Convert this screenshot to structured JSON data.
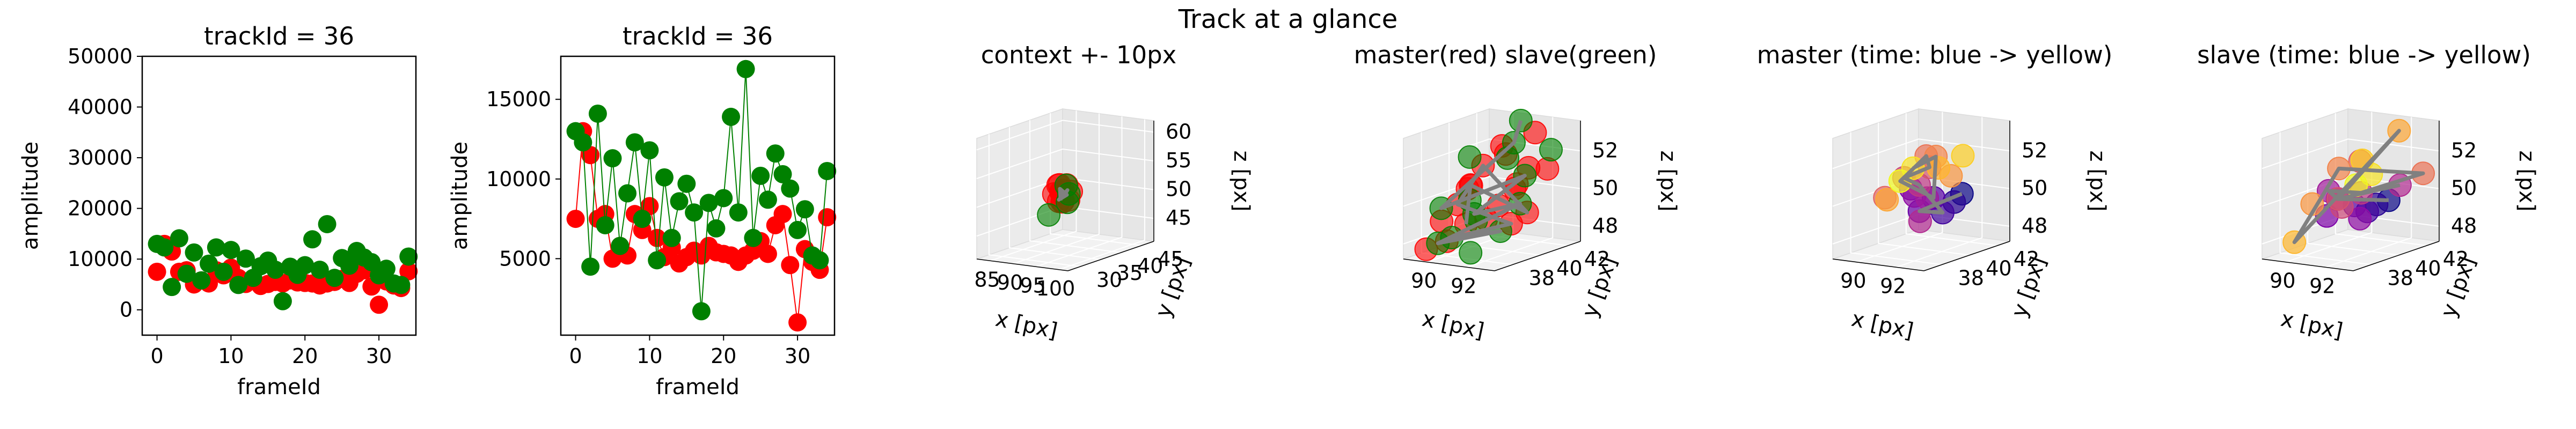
{
  "figure": {
    "suptitle": "Track at a glance"
  },
  "chart_data": [
    {
      "type": "scatter",
      "title": "trackId = 36",
      "xlabel": "frameId",
      "ylabel": "amplitude",
      "xlim": [
        -2,
        35
      ],
      "ylim": [
        -5000,
        50000
      ],
      "xticks": [
        0,
        10,
        20,
        30
      ],
      "yticks": [
        0,
        10000,
        20000,
        30000,
        40000,
        50000
      ],
      "series": [
        {
          "color": "#ff0000",
          "lines": false,
          "x": [
            0,
            1,
            2,
            3,
            4,
            5,
            6,
            7,
            8,
            9,
            10,
            11,
            12,
            13,
            14,
            15,
            16,
            17,
            18,
            19,
            20,
            21,
            22,
            23,
            24,
            25,
            26,
            27,
            28,
            29,
            30,
            31,
            32,
            33,
            34
          ],
          "y": [
            7500,
            13000,
            11500,
            7500,
            7800,
            5000,
            5800,
            5200,
            7800,
            6800,
            8300,
            6300,
            5100,
            5700,
            4700,
            5100,
            5500,
            5200,
            5800,
            5400,
            5300,
            5200,
            4800,
            5200,
            5500,
            6100,
            5300,
            7100,
            7800,
            4600,
            1000,
            5600,
            4800,
            4300,
            7600
          ]
        },
        {
          "color": "#008000",
          "lines": false,
          "x": [
            0,
            1,
            2,
            3,
            4,
            5,
            6,
            7,
            8,
            9,
            10,
            11,
            12,
            13,
            14,
            15,
            16,
            17,
            18,
            19,
            20,
            21,
            22,
            23,
            24,
            25,
            26,
            27,
            28,
            29,
            30,
            31,
            32,
            33,
            34
          ],
          "y": [
            13000,
            12300,
            4500,
            14100,
            7100,
            11300,
            5800,
            9100,
            12300,
            7500,
            11800,
            4900,
            10100,
            6300,
            8600,
            9700,
            7900,
            1700,
            8500,
            6900,
            8800,
            13900,
            7900,
            16900,
            6300,
            10200,
            8700,
            11600,
            10300,
            9400,
            6800,
            8100,
            5200,
            4900,
            10500
          ]
        }
      ]
    },
    {
      "type": "line",
      "title": "trackId = 36",
      "xlabel": "frameId",
      "ylabel": "amplitude",
      "xlim": [
        -2,
        35
      ],
      "ylim": [
        200,
        17700
      ],
      "xticks": [
        0,
        10,
        20,
        30
      ],
      "yticks": [
        5000,
        10000,
        15000
      ],
      "series": [
        {
          "color": "#ff0000",
          "lines": true,
          "x": [
            0,
            1,
            2,
            3,
            4,
            5,
            6,
            7,
            8,
            9,
            10,
            11,
            12,
            13,
            14,
            15,
            16,
            17,
            18,
            19,
            20,
            21,
            22,
            23,
            24,
            25,
            26,
            27,
            28,
            29,
            30,
            31,
            32,
            33,
            34
          ],
          "y": [
            7500,
            13000,
            11500,
            7500,
            7800,
            5000,
            5800,
            5200,
            7800,
            6800,
            8300,
            6300,
            5100,
            5700,
            4700,
            5100,
            5500,
            5200,
            5800,
            5400,
            5300,
            5200,
            4800,
            5200,
            5500,
            6100,
            5300,
            7100,
            7800,
            4600,
            1000,
            5600,
            4800,
            4300,
            7600
          ]
        },
        {
          "color": "#008000",
          "lines": true,
          "x": [
            0,
            1,
            2,
            3,
            4,
            5,
            6,
            7,
            8,
            9,
            10,
            11,
            12,
            13,
            14,
            15,
            16,
            17,
            18,
            19,
            20,
            21,
            22,
            23,
            24,
            25,
            26,
            27,
            28,
            29,
            30,
            31,
            32,
            33,
            34
          ],
          "y": [
            13000,
            12300,
            4500,
            14100,
            7100,
            11300,
            5800,
            9100,
            12300,
            7500,
            11800,
            4900,
            10100,
            6300,
            8600,
            9700,
            7900,
            1700,
            8500,
            6900,
            8800,
            13900,
            7900,
            16900,
            6300,
            10200,
            8700,
            11600,
            10300,
            9400,
            6800,
            8100,
            5200,
            4900,
            10500
          ]
        }
      ]
    },
    {
      "type": "scatter3d",
      "title": "context +- 10px",
      "xlabel": "x [px]",
      "ylabel": "y [px]",
      "zlabel": "z [px]",
      "xlim": [
        82,
        102
      ],
      "ylim": [
        27,
        48
      ],
      "zlim": [
        41,
        62
      ],
      "xticks": [
        85,
        90,
        95,
        100
      ],
      "yticks": [
        30,
        35,
        40,
        45
      ],
      "zticks": [
        45,
        50,
        55,
        60
      ],
      "series": [
        {
          "color": "#ff0000",
          "size": 20,
          "x": [
            89.5,
            90.5,
            91.5,
            90.1,
            91.9,
            89.3,
            90.8,
            91.2,
            89.9,
            90.6,
            91.6,
            90.3
          ],
          "y": [
            37.5,
            38.6,
            37.0,
            38.2,
            38.4,
            39.6,
            39.2,
            36.8,
            39.1,
            37.3,
            39.4,
            38.8
          ],
          "z": [
            50.5,
            49.1,
            51.2,
            52.0,
            49.5,
            50.3,
            51.8,
            49.6,
            48.8,
            52.2,
            50.7,
            50.9
          ]
        },
        {
          "color": "#008000",
          "size": 20,
          "x": [
            89.0,
            91.0,
            92.2,
            90.4
          ],
          "y": [
            36.8,
            39.5,
            37.5,
            39.8
          ],
          "z": [
            47.0,
            50.2,
            52.3,
            48.6
          ]
        }
      ],
      "path": {
        "color": "#808080",
        "x": [
          90.6,
          90.1,
          91.1,
          90.5,
          91.4,
          90.2,
          91.1,
          90.9
        ],
        "y": [
          37.9,
          38.3,
          38.9,
          37.6,
          38.7,
          39.0,
          38.4,
          37.8
        ],
        "z": [
          49.4,
          51.3,
          50.2,
          49.6,
          51.1,
          49.7,
          50.6,
          50.8
        ]
      }
    },
    {
      "type": "scatter3d",
      "title": "master(red) slave(green)",
      "xlabel": "x [px]",
      "ylabel": "y [px]",
      "zlabel": "z [px]",
      "xlim": [
        88.8,
        93.4
      ],
      "ylim": [
        36.7,
        42.9
      ],
      "zlim": [
        47.2,
        53.6
      ],
      "xticks": [
        90,
        92
      ],
      "yticks": [
        38,
        40,
        42
      ],
      "zticks": [
        48,
        50,
        52
      ],
      "series": [
        {
          "color": "#ff0000",
          "size": 22,
          "x": [
            89.6,
            90.0,
            90.9,
            91.8,
            92.6,
            90.4,
            91.4,
            92.2,
            89.4,
            90.6,
            91.9,
            90.0,
            92.8,
            91.0,
            89.1,
            92.5,
            90.5,
            91.6,
            89.6,
            92.0
          ],
          "y": [
            40.4,
            38.9,
            38.6,
            40.6,
            40.2,
            41.8,
            37.5,
            38.7,
            38.6,
            40.1,
            41.3,
            42.1,
            39.0,
            39.3,
            40.9,
            41.8,
            37.4,
            42.2,
            37.2,
            39.9
          ],
          "z": [
            50.3,
            49.7,
            50.9,
            50.6,
            49.3,
            51.7,
            49.2,
            50.0,
            48.8,
            48.7,
            51.3,
            52.0,
            50.9,
            51.8,
            49.9,
            51.2,
            48.2,
            52.9,
            47.7,
            48.7
          ]
        },
        {
          "color": "#008000",
          "size": 22,
          "x": [
            90.6,
            92.4,
            89.0,
            91.3,
            92.2,
            90.2,
            92.8,
            91.0,
            89.8,
            91.8,
            90.4,
            92.4,
            89.5,
            91.6,
            90.7
          ],
          "y": [
            42.6,
            42.2,
            41.2,
            41.1,
            40.6,
            39.8,
            39.4,
            38.4,
            38.0,
            37.2,
            36.9,
            36.8,
            39.2,
            39.7,
            41.5
          ],
          "z": [
            53.3,
            52.1,
            51.5,
            52.6,
            51.1,
            49.0,
            50.0,
            47.4,
            49.7,
            50.6,
            48.2,
            49.7,
            47.8,
            48.3,
            51.6
          ]
        }
      ],
      "path": {
        "color": "#808080",
        "x": [
          90.6,
          91.3,
          89.8,
          92.2,
          90.2,
          92.8,
          90.4,
          91.6,
          89.5,
          92.0,
          90.0,
          91.0,
          92.6,
          89.6,
          91.4
        ],
        "y": [
          42.6,
          41.1,
          38.0,
          40.6,
          39.8,
          39.4,
          36.9,
          39.7,
          39.2,
          39.9,
          38.9,
          39.3,
          40.2,
          40.4,
          37.5
        ],
        "z": [
          53.3,
          52.6,
          49.7,
          51.1,
          49.0,
          50.0,
          48.2,
          48.3,
          47.8,
          48.7,
          49.7,
          51.8,
          49.3,
          50.3,
          49.2
        ]
      }
    },
    {
      "type": "scatter3d",
      "title": "master (time: blue -> yellow)",
      "xlabel": "x [px]",
      "ylabel": "y [px]",
      "zlabel": "z [px]",
      "xlim": [
        88.8,
        93.4
      ],
      "ylim": [
        36.7,
        42.9
      ],
      "zlim": [
        47.2,
        53.6
      ],
      "xticks": [
        90,
        92
      ],
      "yticks": [
        38,
        40,
        42
      ],
      "zticks": [
        48,
        50,
        52
      ],
      "colors": [
        "#0d0887",
        "#2a0593",
        "#41049d",
        "#5601a4",
        "#6a00a8",
        "#7e03a8",
        "#8f0da4",
        "#a11b9b",
        "#b12a90",
        "#bf3984",
        "#cc4778",
        "#d6556d",
        "#e16462",
        "#ea7457",
        "#f2844b",
        "#f89540",
        "#fca636",
        "#feb72d",
        "#fcce25",
        "#f7e225",
        "#f0f921"
      ],
      "points": {
        "x": [
          92.8,
          92.2,
          91.9,
          92.0,
          91.5,
          91.2,
          90.9,
          91.4,
          91.6,
          90.5,
          91.0,
          90.4,
          90.8,
          91.7,
          90.3,
          91.9,
          90.7,
          91.2,
          91.8,
          89.5,
          89.2
        ],
        "y": [
          40.3,
          40.6,
          40.2,
          39.4,
          39.1,
          38.9,
          39.6,
          39.8,
          39.0,
          40.5,
          38.7,
          41.4,
          37.6,
          39.3,
          42.0,
          40.8,
          37.9,
          40.9,
          41.8,
          41.5,
          41.0
        ],
        "z": [
          50.3,
          49.7,
          49.2,
          50.2,
          49.5,
          50.7,
          50.1,
          50.0,
          49.0,
          50.4,
          51.3,
          51.1,
          50.5,
          52.4,
          51.5,
          51.0,
          50.3,
          51.3,
          51.8,
          50.9,
          50.3
        ]
      },
      "path": {
        "color": "#808080",
        "x": [
          92.8,
          91.5,
          91.9,
          90.5,
          91.0,
          90.4,
          91.7,
          89.2,
          92.0,
          90.3,
          89.5
        ],
        "y": [
          40.3,
          39.1,
          40.2,
          40.5,
          38.7,
          41.4,
          39.3,
          41.0,
          39.4,
          42.0,
          41.5
        ],
        "z": [
          50.3,
          49.5,
          49.2,
          50.4,
          51.3,
          51.1,
          52.4,
          50.3,
          50.2,
          51.5,
          50.9
        ]
      }
    },
    {
      "type": "scatter3d",
      "title": "slave (time: blue -> yellow)",
      "xlabel": "x [px]",
      "ylabel": "y [px]",
      "zlabel": "z [px]",
      "xlim": [
        88.8,
        93.4
      ],
      "ylim": [
        36.7,
        42.9
      ],
      "zlim": [
        47.2,
        53.6
      ],
      "xticks": [
        90,
        92
      ],
      "yticks": [
        38,
        40,
        42
      ],
      "zticks": [
        48,
        50,
        52
      ],
      "colors": [
        "#0d0887",
        "#2a0593",
        "#41049d",
        "#5601a4",
        "#6a00a8",
        "#7e03a8",
        "#8f0da4",
        "#a11b9b",
        "#b12a90",
        "#bf3984",
        "#cc4778",
        "#d6556d",
        "#e16462",
        "#ea7457",
        "#f2844b",
        "#f89540",
        "#fca636",
        "#feb72d",
        "#fcce25",
        "#f7e225",
        "#f0f921"
      ],
      "points": {
        "x": [
          92.6,
          92.2,
          91.8,
          91.3,
          91.0,
          90.6,
          91.5,
          90.2,
          92.4,
          91.0,
          90.8,
          90.4,
          90.6,
          92.8,
          89.6,
          90.0,
          91.8,
          89.8,
          91.2,
          90.6,
          90.4
        ],
        "y": [
          40.4,
          40.1,
          40.0,
          39.8,
          39.0,
          38.8,
          39.9,
          39.5,
          41.5,
          40.7,
          39.6,
          39.9,
          41.2,
          42.6,
          41.1,
          38.6,
          42.3,
          37.6,
          40.5,
          42.0,
          41.2
        ],
        "z": [
          49.9,
          49.7,
          49.3,
          49.6,
          50.1,
          49.2,
          48.9,
          50.3,
          50.4,
          50.0,
          49.5,
          49.8,
          51.5,
          50.8,
          51.0,
          49.8,
          53.0,
          48.0,
          51.8,
          50.6,
          50.2
        ]
      },
      "path": {
        "color": "#808080",
        "x": [
          92.6,
          91.0,
          90.2,
          91.0,
          92.8,
          89.6,
          89.8,
          91.8,
          90.4,
          92.4
        ],
        "y": [
          40.4,
          39.0,
          39.5,
          40.7,
          42.6,
          41.1,
          37.6,
          42.3,
          39.9,
          41.5
        ],
        "z": [
          49.9,
          50.1,
          50.3,
          50.0,
          50.8,
          51.0,
          48.0,
          53.0,
          49.8,
          50.4
        ]
      }
    }
  ]
}
